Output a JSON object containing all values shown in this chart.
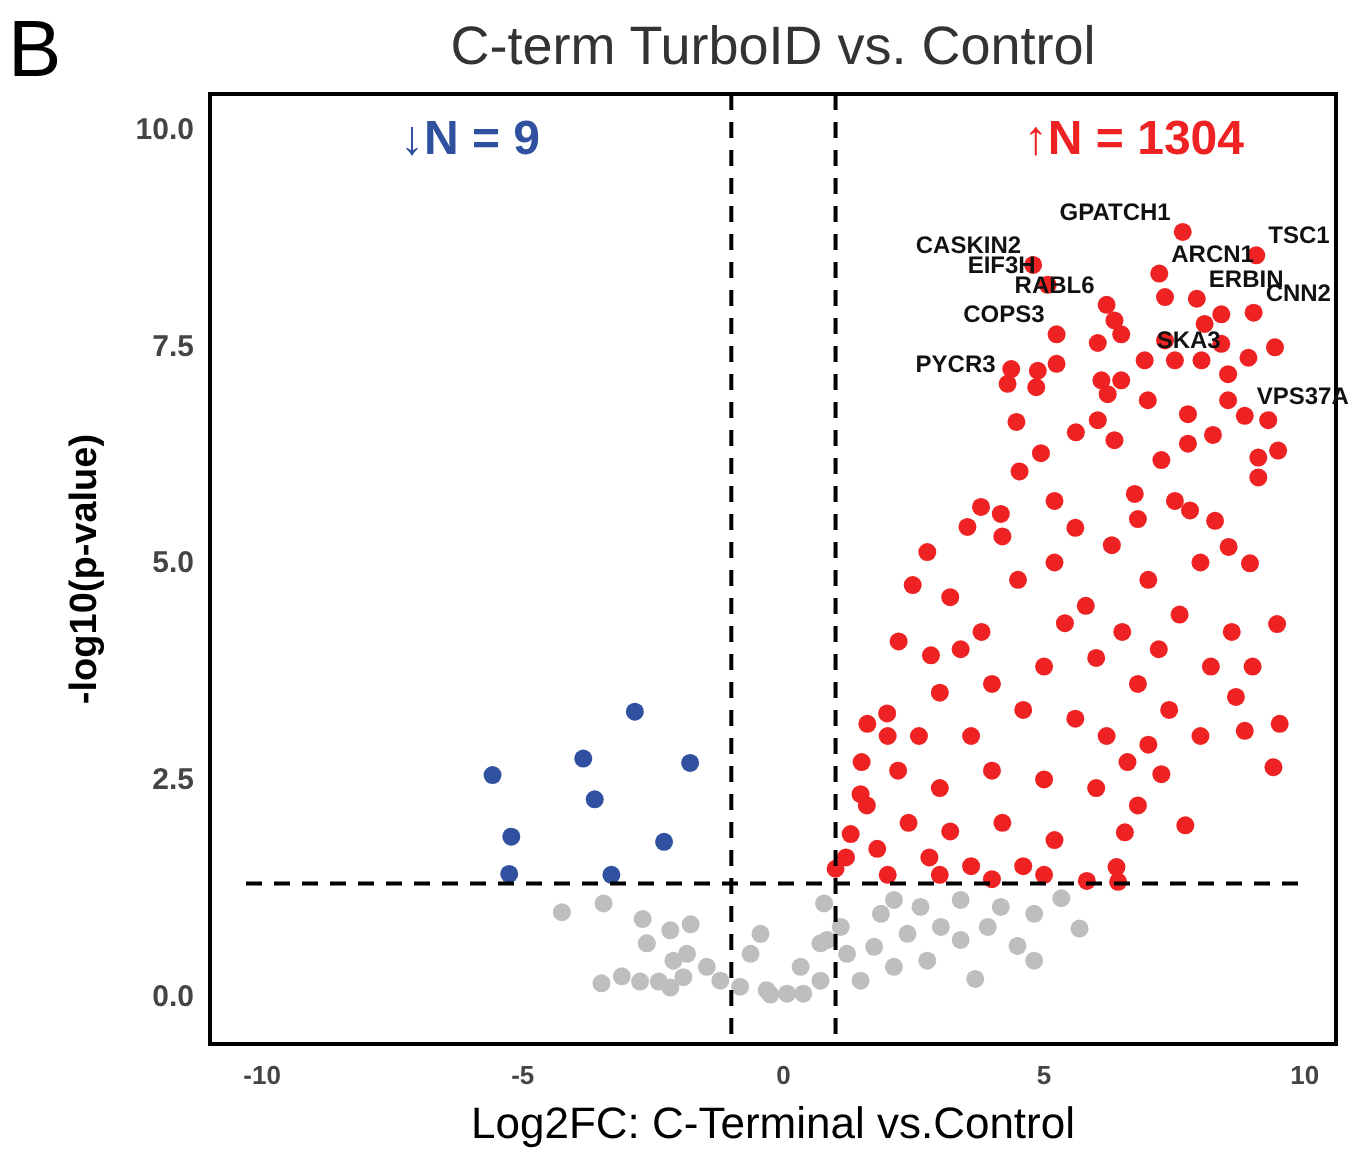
{
  "chart_data": {
    "type": "scatter",
    "title": "C-term TurboID vs. Control",
    "xlabel": "Log2FC: C-Terminal vs.Control",
    "ylabel": "-log10(p-value)",
    "xlim": [
      -11,
      10.6
    ],
    "ylim": [
      -0.55,
      10.4
    ],
    "xticks": [
      -10,
      -5,
      0,
      5,
      10
    ],
    "yticks": [
      {
        "value": 0,
        "label": "0.0"
      },
      {
        "value": 2.5,
        "label": "2.5"
      },
      {
        "value": 5,
        "label": "5.0"
      },
      {
        "value": 7.5,
        "label": "7.5"
      },
      {
        "value": 10,
        "label": "10.0"
      }
    ],
    "grid": false,
    "legend": "top",
    "marker": "circle",
    "ref_lines": [
      {
        "axis": "x",
        "value": -1,
        "line_style": "dashed",
        "color": "#000000"
      },
      {
        "axis": "x",
        "value": 1,
        "line_style": "dashed",
        "color": "#000000"
      },
      {
        "axis": "y",
        "value": 1.3,
        "line_style": "dashed",
        "color": "#000000"
      }
    ],
    "series": [
      {
        "color": "#bebebe",
        "x": [
          -4.25,
          -3.45,
          -2.7,
          -2.17,
          -1.78,
          -0.44,
          -3.49,
          -3.1,
          -2.75,
          -2.39,
          -2.17,
          -1.92,
          -2.62,
          -2.11,
          -1.85,
          -1.47,
          -1.21,
          -0.63,
          -0.32,
          0.38,
          0.33,
          0.71,
          0.78,
          -0.83,
          -0.25,
          4.81,
          5.68,
          5.33,
          4.49,
          3.68,
          4.81,
          3.4,
          2.76,
          2.12,
          1.48,
          0.07,
          1.1,
          1.87,
          2.63,
          3.4,
          4.17,
          2.38,
          3.02,
          3.92,
          1.22,
          0.71,
          1.74,
          0.84,
          2.12
        ],
        "values": [
          0.97,
          1.07,
          0.89,
          0.76,
          0.83,
          0.72,
          0.15,
          0.23,
          0.17,
          0.17,
          0.1,
          0.22,
          0.61,
          0.41,
          0.49,
          0.34,
          0.18,
          0.49,
          0.07,
          0.03,
          0.34,
          0.61,
          1.07,
          0.11,
          0.02,
          0.41,
          0.78,
          1.13,
          0.58,
          0.2,
          0.95,
          0.65,
          0.41,
          0.34,
          0.18,
          0.03,
          0.8,
          0.95,
          1.03,
          1.11,
          1.03,
          0.72,
          0.8,
          0.8,
          0.49,
          0.18,
          0.57,
          0.65,
          1.11
        ]
      },
      {
        "name": "↓N = 9",
        "color": "#3050a0",
        "x": [
          -5.58,
          -2.85,
          -3.84,
          -1.79,
          -3.62,
          -5.22,
          -2.29,
          -5.26,
          -3.3
        ],
        "values": [
          2.55,
          3.28,
          2.74,
          2.69,
          2.27,
          1.84,
          1.78,
          1.41,
          1.4
        ]
      },
      {
        "name": "↑N = 1304",
        "color": "#ee2222",
        "x": [
          7.66,
          9.07,
          4.79,
          7.21,
          5.07,
          7.93,
          6.2,
          9.02,
          5.24,
          6.93,
          4.3,
          8.85,
          1.0,
          9.47,
          9.52,
          9.4,
          7.71,
          6.42,
          6.39,
          5.82,
          6.55,
          7.25,
          8.85,
          8.68,
          8.95,
          8.54,
          8.28,
          2.48,
          2.21,
          2.83,
          3.53,
          2.76,
          1.48,
          1.29,
          1.61,
          1.99,
          3.79,
          4.53,
          4.94,
          5.61,
          6.35,
          7.25,
          8.24,
          9.11,
          9.49,
          9.11,
          7.76,
          6.99,
          6.1,
          6.22,
          4.37,
          4.88,
          4.85,
          4.47,
          5.24,
          6.03,
          6.48,
          7.32,
          7.51,
          8.02,
          8.53,
          8.92,
          9.43,
          8.4,
          8.08,
          7.32,
          6.35,
          8.4,
          6.03,
          6.48,
          7.76,
          8.53,
          9.3,
          6.74,
          5.2,
          4.17,
          7.51,
          3.2,
          3.8,
          4.5,
          5.2,
          5.8,
          6.3,
          7.0,
          7.6,
          8.0,
          4.0,
          5.0,
          6.0,
          6.8,
          7.4,
          8.2,
          3.0,
          4.2,
          5.6,
          6.8,
          7.8,
          3.4,
          5.4,
          6.5,
          7.2,
          8.6,
          6.2,
          7.0,
          5.6,
          4.6,
          3.6,
          2.6,
          2.2,
          3.0,
          4.0,
          5.0,
          6.0,
          6.8,
          2.4,
          3.2,
          4.2,
          5.2,
          1.8,
          2.8,
          3.6,
          4.6,
          1.6,
          2.0,
          3.0,
          4.0,
          5.0,
          1.2,
          1.5,
          2.0,
          6.6,
          8.0,
          9.0
        ],
        "values": [
          8.81,
          8.54,
          8.43,
          8.33,
          8.2,
          8.04,
          7.97,
          7.88,
          7.63,
          7.33,
          7.06,
          6.69,
          1.47,
          4.29,
          3.14,
          2.64,
          1.97,
          1.32,
          1.49,
          1.33,
          1.89,
          2.56,
          3.06,
          3.45,
          4.99,
          5.18,
          5.48,
          4.74,
          4.09,
          3.93,
          5.41,
          5.12,
          2.33,
          1.87,
          3.14,
          3.26,
          5.64,
          6.05,
          6.26,
          6.5,
          6.41,
          6.18,
          6.47,
          6.21,
          6.29,
          5.98,
          6.71,
          6.87,
          7.1,
          6.94,
          7.23,
          7.21,
          7.02,
          6.62,
          7.29,
          7.53,
          7.63,
          7.56,
          7.33,
          7.33,
          7.17,
          7.36,
          7.48,
          7.86,
          7.75,
          8.06,
          7.79,
          7.52,
          6.64,
          7.1,
          6.37,
          6.87,
          6.64,
          5.79,
          5.71,
          5.56,
          5.71,
          4.6,
          4.2,
          4.8,
          5.0,
          4.5,
          5.2,
          4.8,
          4.4,
          5.0,
          3.6,
          3.8,
          3.9,
          3.6,
          3.3,
          3.8,
          3.5,
          5.3,
          5.4,
          5.5,
          5.6,
          4.0,
          4.3,
          4.2,
          4.0,
          4.2,
          3.0,
          2.9,
          3.2,
          3.3,
          3.0,
          3.0,
          2.6,
          2.4,
          2.6,
          2.5,
          2.4,
          2.2,
          2.0,
          1.9,
          2.0,
          1.8,
          1.7,
          1.6,
          1.5,
          1.5,
          2.2,
          1.4,
          1.4,
          1.35,
          1.4,
          1.6,
          2.7,
          3.0,
          2.7,
          3.0,
          3.8
        ]
      }
    ],
    "annotations": [
      "B",
      {
        "text": "GPATCH1",
        "x": 7.66,
        "y": 8.81
      },
      {
        "text": "TSC1",
        "x": 9.07,
        "y": 8.54
      },
      {
        "text": "CASKIN2",
        "x": 4.79,
        "y": 8.43
      },
      {
        "text": "ARCN1",
        "x": 7.21,
        "y": 8.33
      },
      {
        "text": "EIF3H",
        "x": 5.07,
        "y": 8.2
      },
      {
        "text": "ERBIN",
        "x": 7.93,
        "y": 8.04
      },
      {
        "text": "RABL6",
        "x": 6.2,
        "y": 7.97
      },
      {
        "text": "CNN2",
        "x": 9.02,
        "y": 7.88
      },
      {
        "text": "COPS3",
        "x": 5.24,
        "y": 7.63
      },
      {
        "text": "SKA3",
        "x": 6.93,
        "y": 7.33
      },
      {
        "text": "PYCR3",
        "x": 4.3,
        "y": 7.06
      },
      {
        "text": "VPS37A",
        "x": 8.85,
        "y": 6.69
      }
    ]
  }
}
